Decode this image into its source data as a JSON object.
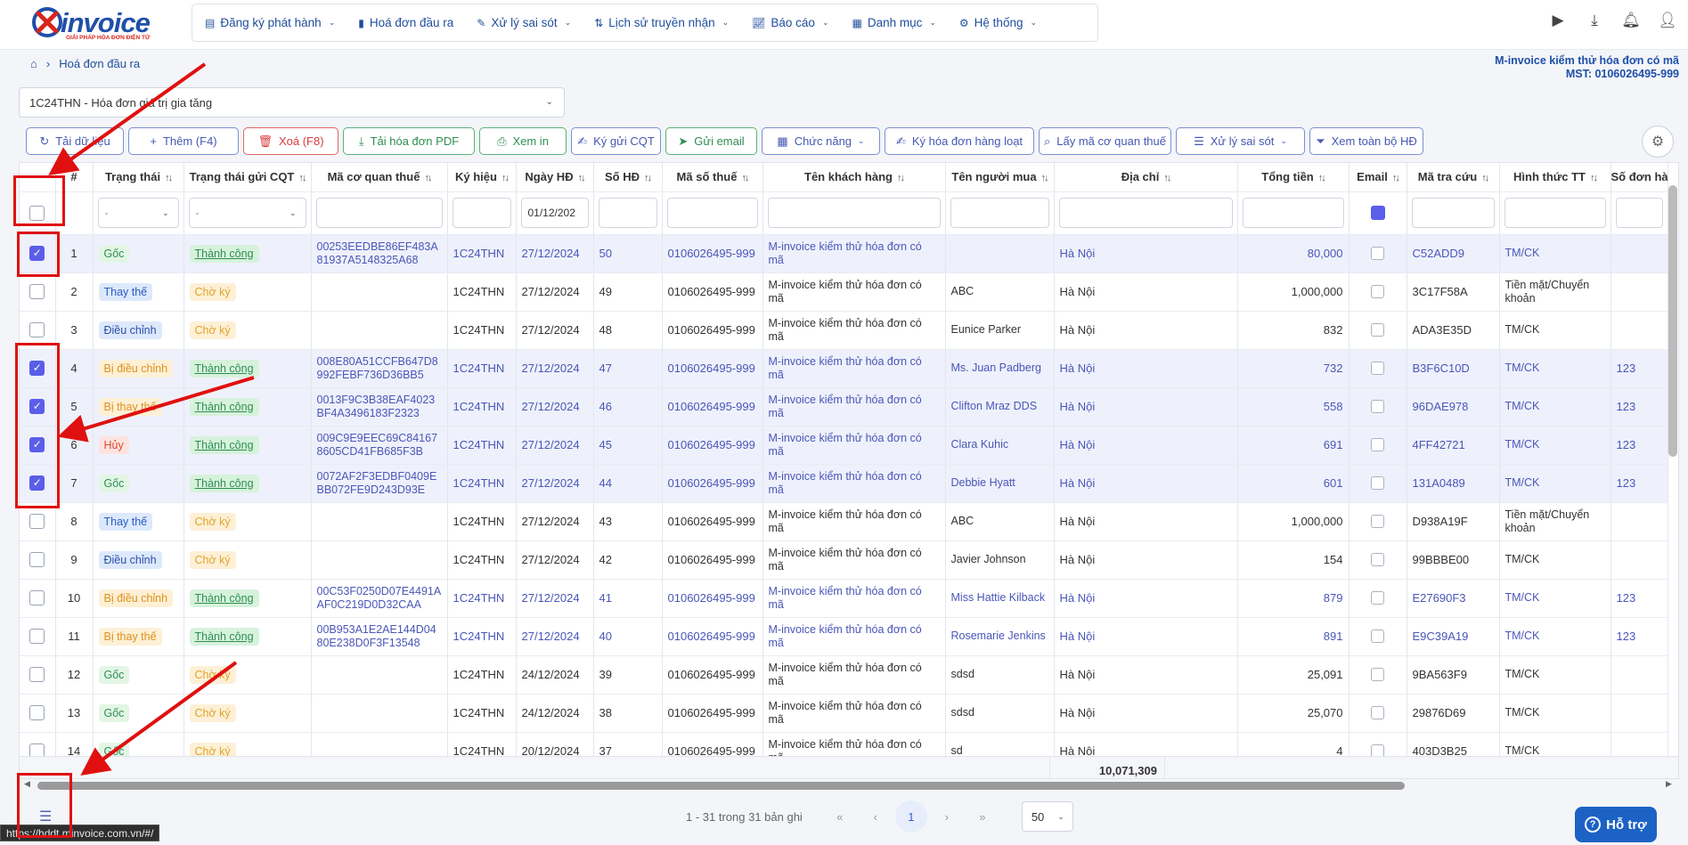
{
  "app": {
    "brand": "invoice",
    "tagline": "GIẢI PHÁP HÓA ĐƠN ĐIỆN TỬ"
  },
  "nav": [
    {
      "label": "Đăng ký phát hành",
      "icon": "document-icon",
      "dropdown": true
    },
    {
      "label": "Hoá đơn đầu ra",
      "icon": "invoice-icon",
      "dropdown": false
    },
    {
      "label": "Xử lý sai sót",
      "icon": "edit-file-icon",
      "dropdown": true
    },
    {
      "label": "Lịch sử truyền nhận",
      "icon": "sort-arrows-icon",
      "dropdown": true
    },
    {
      "label": "Báo cáo",
      "icon": "chart-icon",
      "dropdown": true
    },
    {
      "label": "Danh mục",
      "icon": "grid-icon",
      "dropdown": true
    },
    {
      "label": "Hệ thống",
      "icon": "gear-icon",
      "dropdown": true
    }
  ],
  "breadcrumb": {
    "current": "Hoá đơn đầu ra"
  },
  "company": {
    "name": "M-invoice kiểm thử hóa đơn có mã",
    "tax": "MST: 0106026495-999"
  },
  "series_select": {
    "value": "1C24THN - Hóa đơn giá trị gia tăng"
  },
  "toolbar": [
    {
      "label": "Tải dữ liệu",
      "icon": "refresh-icon",
      "style": "blue"
    },
    {
      "label": "Thêm (F4)",
      "icon": "plus-icon",
      "style": "blue"
    },
    {
      "label": "Xoá (F8)",
      "icon": "trash-icon",
      "style": "red"
    },
    {
      "label": "Tải hóa đơn PDF",
      "icon": "download-icon",
      "style": "green"
    },
    {
      "label": "Xem in",
      "icon": "printer-icon",
      "style": "green"
    },
    {
      "label": "Ký gửi CQT",
      "icon": "sign-icon",
      "style": "blue"
    },
    {
      "label": "Gửi email",
      "icon": "send-icon",
      "style": "green"
    },
    {
      "label": "Chức năng",
      "icon": "grid-icon",
      "style": "blue",
      "dropdown": true
    },
    {
      "label": "Ký hóa đơn hàng loạt",
      "icon": "sign-icon",
      "style": "blue"
    },
    {
      "label": "Lấy mã cơ quan thuế",
      "icon": "search-icon",
      "style": "blue"
    },
    {
      "label": "Xử lý sai sót",
      "icon": "list-icon",
      "style": "blue",
      "dropdown": true
    },
    {
      "label": "Xem toàn bộ HĐ",
      "icon": "filter-icon",
      "style": "blue"
    }
  ],
  "columns": [
    "#",
    "Trạng thái",
    "Trạng thái gửi CQT",
    "Mã cơ quan thuế",
    "Ký hiệu",
    "Ngày HĐ",
    "Số HĐ",
    "Mã số thuế",
    "Tên khách hàng",
    "Tên người mua",
    "Địa chỉ",
    "Tổng tiền",
    "Email",
    "Mã tra cứu",
    "Hình thức TT",
    "Số đơn hàn"
  ],
  "filters": {
    "status": "-",
    "cqt_status": "-",
    "date": "01/12/202"
  },
  "rows": [
    {
      "checked": true,
      "no": "1",
      "status": "Gốc",
      "st": "goc",
      "cqt": "Thành công",
      "ct": "tc",
      "code": "00253EEDBE86EF483A81937A5148325A68",
      "sym": "1C24THN",
      "date": "27/12/2024",
      "num": "50",
      "tax": "0106026495-999",
      "cust": "M-invoice kiểm thử hóa đơn có mã",
      "buyer": "",
      "addr": "Hà Nội",
      "total": "80,000",
      "lookup": "C52ADD9",
      "pay": "TM/CK",
      "order": ""
    },
    {
      "checked": false,
      "no": "2",
      "status": "Thay thế",
      "st": "thay",
      "cqt": "Chờ ký",
      "ct": "ck",
      "code": "",
      "sym": "1C24THN",
      "date": "27/12/2024",
      "num": "49",
      "tax": "0106026495-999",
      "cust": "M-invoice kiểm thử hóa đơn có mã",
      "buyer": "ABC",
      "addr": "Hà Nội",
      "total": "1,000,000",
      "lookup": "3C17F58A",
      "pay": "Tiền mặt/Chuyển khoản",
      "order": ""
    },
    {
      "checked": false,
      "no": "3",
      "status": "Điều chỉnh",
      "st": "dc",
      "cqt": "Chờ ký",
      "ct": "ck",
      "code": "",
      "sym": "1C24THN",
      "date": "27/12/2024",
      "num": "48",
      "tax": "0106026495-999",
      "cust": "M-invoice kiểm thử hóa đơn có mã",
      "buyer": "Eunice Parker",
      "addr": "Hà Nội",
      "total": "832",
      "lookup": "ADA3E35D",
      "pay": "TM/CK",
      "order": ""
    },
    {
      "checked": true,
      "no": "4",
      "status": "Bị điều chỉnh",
      "st": "bdc",
      "cqt": "Thành công",
      "ct": "tc",
      "code": "008E80A51CCFB647D8992FEBF736D36BB5",
      "sym": "1C24THN",
      "date": "27/12/2024",
      "num": "47",
      "tax": "0106026495-999",
      "cust": "M-invoice kiểm thử hóa đơn có mã",
      "buyer": "Ms. Juan Padberg",
      "addr": "Hà Nội",
      "total": "732",
      "lookup": "B3F6C10D",
      "pay": "TM/CK",
      "order": "123"
    },
    {
      "checked": true,
      "no": "5",
      "status": "Bị thay thế",
      "st": "bdc",
      "cqt": "Thành công",
      "ct": "tc",
      "code": "0013F9C3B38EAF4023BF4A3496183F2323",
      "sym": "1C24THN",
      "date": "27/12/2024",
      "num": "46",
      "tax": "0106026495-999",
      "cust": "M-invoice kiểm thử hóa đơn có mã",
      "buyer": "Clifton Mraz DDS",
      "addr": "Hà Nội",
      "total": "558",
      "lookup": "96DAE978",
      "pay": "TM/CK",
      "order": "123"
    },
    {
      "checked": true,
      "no": "6",
      "status": "Hủy",
      "st": "huy",
      "cqt": "Thành công",
      "ct": "tc",
      "code": "009C9E9EEC69C841678605CD41FB685F3B",
      "sym": "1C24THN",
      "date": "27/12/2024",
      "num": "45",
      "tax": "0106026495-999",
      "cust": "M-invoice kiểm thử hóa đơn có mã",
      "buyer": "Clara Kuhic",
      "addr": "Hà Nội",
      "total": "691",
      "lookup": "4FF42721",
      "pay": "TM/CK",
      "order": "123"
    },
    {
      "checked": true,
      "no": "7",
      "status": "Gốc",
      "st": "goc",
      "cqt": "Thành công",
      "ct": "tc",
      "code": "0072AF2F3EDBF0409EBB072FE9D243D93E",
      "sym": "1C24THN",
      "date": "27/12/2024",
      "num": "44",
      "tax": "0106026495-999",
      "cust": "M-invoice kiểm thử hóa đơn có mã",
      "buyer": "Debbie Hyatt",
      "addr": "Hà Nội",
      "total": "601",
      "lookup": "131A0489",
      "pay": "TM/CK",
      "order": "123"
    },
    {
      "checked": false,
      "no": "8",
      "status": "Thay thế",
      "st": "thay",
      "cqt": "Chờ ký",
      "ct": "ck",
      "code": "",
      "sym": "1C24THN",
      "date": "27/12/2024",
      "num": "43",
      "tax": "0106026495-999",
      "cust": "M-invoice kiểm thử hóa đơn có mã",
      "buyer": "ABC",
      "addr": "Hà Nội",
      "total": "1,000,000",
      "lookup": "D938A19F",
      "pay": "Tiền mặt/Chuyển khoản",
      "order": ""
    },
    {
      "checked": false,
      "no": "9",
      "status": "Điều chỉnh",
      "st": "dc",
      "cqt": "Chờ ký",
      "ct": "ck",
      "code": "",
      "sym": "1C24THN",
      "date": "27/12/2024",
      "num": "42",
      "tax": "0106026495-999",
      "cust": "M-invoice kiểm thử hóa đơn có mã",
      "buyer": "Javier Johnson",
      "addr": "Hà Nội",
      "total": "154",
      "lookup": "99BBBE00",
      "pay": "TM/CK",
      "order": ""
    },
    {
      "checked": false,
      "no": "10",
      "status": "Bị điều chỉnh",
      "st": "bdc",
      "cqt": "Thành công",
      "ct": "tc",
      "code": "00C53F0250D07E4491AAF0C219D0D32CAA",
      "sym": "1C24THN",
      "date": "27/12/2024",
      "num": "41",
      "tax": "0106026495-999",
      "cust": "M-invoice kiểm thử hóa đơn có mã",
      "buyer": "Miss Hattie Kilback",
      "addr": "Hà Nội",
      "total": "879",
      "lookup": "E27690F3",
      "pay": "TM/CK",
      "order": "123"
    },
    {
      "checked": false,
      "no": "11",
      "status": "Bị thay thế",
      "st": "bdc",
      "cqt": "Thành công",
      "ct": "tc",
      "code": "00B953A1E2AE144D0480E238D0F3F13548",
      "sym": "1C24THN",
      "date": "27/12/2024",
      "num": "40",
      "tax": "0106026495-999",
      "cust": "M-invoice kiểm thử hóa đơn có mã",
      "buyer": "Rosemarie Jenkins",
      "addr": "Hà Nội",
      "total": "891",
      "lookup": "E9C39A19",
      "pay": "TM/CK",
      "order": "123"
    },
    {
      "checked": false,
      "no": "12",
      "status": "Gốc",
      "st": "goc",
      "cqt": "Chờ ký",
      "ct": "ck",
      "code": "",
      "sym": "1C24THN",
      "date": "24/12/2024",
      "num": "39",
      "tax": "0106026495-999",
      "cust": "M-invoice kiểm thử hóa đơn có mã",
      "buyer": "sdsd",
      "addr": "Hà Nội",
      "total": "25,091",
      "lookup": "9BA563F9",
      "pay": "TM/CK",
      "order": ""
    },
    {
      "checked": false,
      "no": "13",
      "status": "Gốc",
      "st": "goc",
      "cqt": "Chờ ký",
      "ct": "ck",
      "code": "",
      "sym": "1C24THN",
      "date": "24/12/2024",
      "num": "38",
      "tax": "0106026495-999",
      "cust": "M-invoice kiểm thử hóa đơn có mã",
      "buyer": "sdsd",
      "addr": "Hà Nội",
      "total": "25,070",
      "lookup": "29876D69",
      "pay": "TM/CK",
      "order": ""
    },
    {
      "checked": false,
      "no": "14",
      "status": "Gốc",
      "st": "goc",
      "cqt": "Chờ ký",
      "ct": "ck",
      "code": "",
      "sym": "1C24THN",
      "date": "20/12/2024",
      "num": "37",
      "tax": "0106026495-999",
      "cust": "M-invoice kiểm thử hóa đơn có mã",
      "buyer": "sd",
      "addr": "Hà Nội",
      "total": "4",
      "lookup": "403D3B25",
      "pay": "TM/CK",
      "order": ""
    }
  ],
  "footer": {
    "sum": "10,071,309"
  },
  "pager": {
    "summary": "1 - 31 trong 31 bản ghi",
    "current": "1",
    "page_size": "50"
  },
  "support": {
    "label": "Hỗ trợ"
  },
  "status_url": "https://hddt.minvoice.com.vn/#/",
  "colors": {
    "brand": "#1f4fa8",
    "accent": "#5b5ee8",
    "annotation": "#e01010"
  }
}
